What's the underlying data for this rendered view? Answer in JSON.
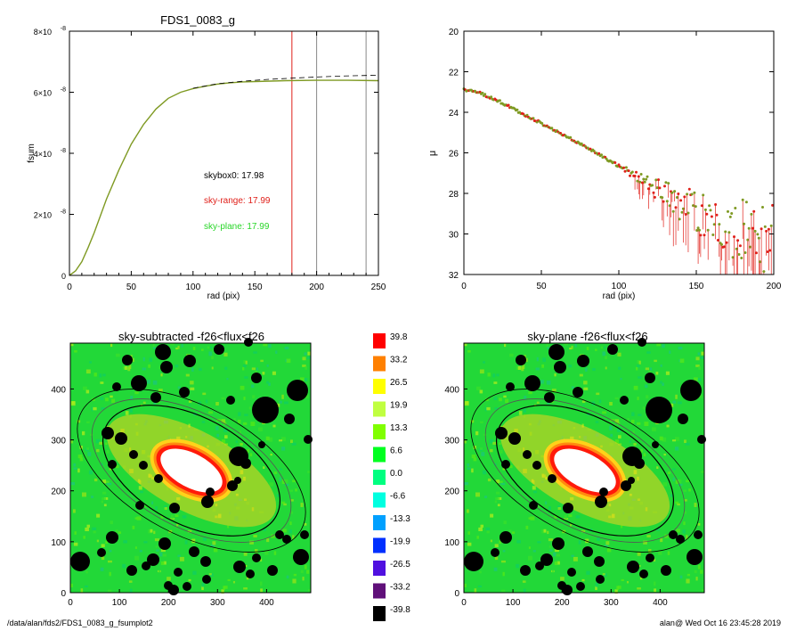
{
  "footer": {
    "left": "/data/alan/fds2/FDS1_0083_g_fsumplot2",
    "right": "alan@  Wed Oct 16 23:45:28 2019"
  },
  "colors": {
    "growth": "#7f9a23",
    "sky_range": "#e0201a",
    "sky_plane": "#28d628",
    "map_background": "#22d838",
    "points": "#7f9a23"
  },
  "chart_data": [
    {
      "type": "line",
      "title": "FDS1_0083_g",
      "xlabel": "rad (pix)",
      "ylabel": "fsum",
      "xlim": [
        0,
        250
      ],
      "ylim": [
        0,
        8e-08
      ],
      "xticks": [
        "0",
        "50",
        "100",
        "150",
        "200",
        "250"
      ],
      "yticks": [
        {
          "value": 0,
          "mant": "0",
          "exp": ""
        },
        {
          "value": 2e-08,
          "mant": "2×10",
          "exp": "-8"
        },
        {
          "value": 4e-08,
          "mant": "4×10",
          "exp": "-8"
        },
        {
          "value": 6e-08,
          "mant": "6×10",
          "exp": "-8"
        },
        {
          "value": 8e-08,
          "mant": "8×10",
          "exp": "-8"
        }
      ],
      "series": [
        {
          "style": "solid",
          "x": [
            0,
            5,
            10,
            15,
            20,
            25,
            30,
            40,
            50,
            60,
            70,
            80,
            90,
            100,
            110,
            120,
            130,
            140,
            150,
            175,
            200,
            225,
            250
          ],
          "y": [
            0,
            1.5e-09,
            4.5e-09,
            9e-09,
            1.4e-08,
            1.95e-08,
            2.5e-08,
            3.45e-08,
            4.3e-08,
            4.95e-08,
            5.45e-08,
            5.8e-08,
            6e-08,
            6.12e-08,
            6.2e-08,
            6.27e-08,
            6.31e-08,
            6.34e-08,
            6.35e-08,
            6.38e-08,
            6.39e-08,
            6.39e-08,
            6.38e-08
          ]
        },
        {
          "style": "dashed",
          "x": [
            100,
            120,
            140,
            160,
            180,
            200,
            220,
            240,
            250
          ],
          "y": [
            6.13e-08,
            6.28e-08,
            6.36e-08,
            6.42e-08,
            6.46e-08,
            6.5e-08,
            6.53e-08,
            6.55e-08,
            6.56e-08
          ]
        }
      ],
      "vlines": [
        {
          "x": 180,
          "color": "red"
        },
        {
          "x": 200,
          "color": "gray"
        },
        {
          "x": 240,
          "color": "gray"
        }
      ],
      "annotations": [
        {
          "label": "skybox0: 17.98",
          "color": "black"
        },
        {
          "label": "sky-range: 17.99",
          "color": "red"
        },
        {
          "label": "sky-plane: 17.99",
          "color": "green"
        }
      ]
    },
    {
      "type": "scatter",
      "xlabel": "rad (pix)",
      "ylabel": "μ",
      "xlim": [
        0,
        200
      ],
      "ylim": [
        32,
        20
      ],
      "xticks": [
        "0",
        "50",
        "100",
        "150",
        "200"
      ],
      "yticks": [
        "20",
        "22",
        "24",
        "26",
        "28",
        "30",
        "32"
      ],
      "profile": {
        "x": [
          0,
          5,
          10,
          20,
          30,
          40,
          50,
          60,
          70,
          80,
          90,
          100,
          110,
          120,
          130,
          140,
          150,
          160,
          170,
          180,
          190,
          200
        ],
        "y": [
          22.9,
          22.95,
          23.05,
          23.35,
          23.75,
          24.15,
          24.55,
          24.95,
          25.35,
          25.75,
          26.2,
          26.65,
          27.1,
          27.6,
          28.1,
          28.5,
          28.9,
          29.3,
          29.6,
          29.8,
          30.0,
          30.1
        ]
      }
    },
    {
      "type": "heatmap",
      "title": "sky-subtracted -f26<flux<f26",
      "xlim": [
        0,
        490
      ],
      "ylim": [
        0,
        490
      ],
      "xticks": [
        "0",
        "100",
        "200",
        "300",
        "400"
      ],
      "yticks": [
        "0",
        "100",
        "200",
        "300",
        "400"
      ]
    },
    {
      "type": "heatmap",
      "title": "sky-plane -f26<flux<f26",
      "xlim": [
        0,
        490
      ],
      "ylim": [
        0,
        490
      ],
      "xticks": [
        "0",
        "100",
        "200",
        "300",
        "400"
      ],
      "yticks": [
        "0",
        "100",
        "200",
        "300",
        "400"
      ]
    },
    {
      "type": "colorbar",
      "levels": [
        {
          "label": "39.8",
          "color": "#ff0000"
        },
        {
          "label": "33.2",
          "color": "#ff8000"
        },
        {
          "label": "26.5",
          "color": "#ffff00"
        },
        {
          "label": "19.9",
          "color": "#c0ff40"
        },
        {
          "label": "13.3",
          "color": "#80ff00"
        },
        {
          "label": "6.6",
          "color": "#00ff20"
        },
        {
          "label": "0.0",
          "color": "#00ff80"
        },
        {
          "label": "-6.6",
          "color": "#00ffe0"
        },
        {
          "label": "-13.3",
          "color": "#00a0ff"
        },
        {
          "label": "-19.9",
          "color": "#0030ff"
        },
        {
          "label": "-26.5",
          "color": "#5010e0"
        },
        {
          "label": "-33.2",
          "color": "#60107a"
        },
        {
          "label": "-39.8",
          "color": "#000000"
        }
      ]
    }
  ]
}
